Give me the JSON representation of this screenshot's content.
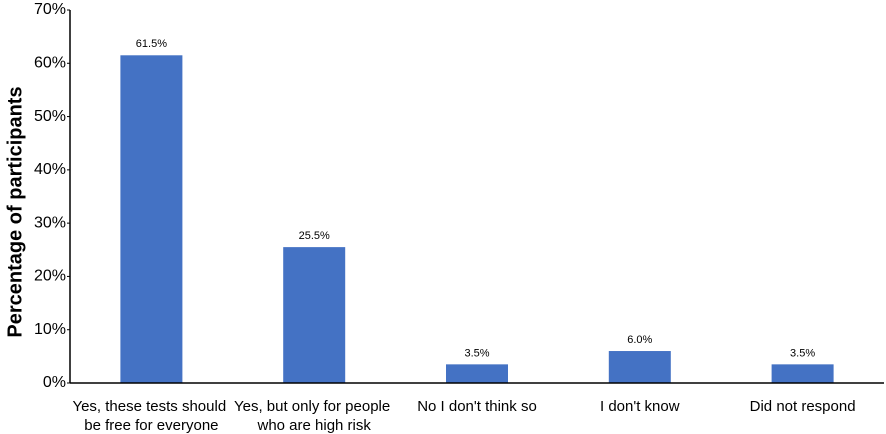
{
  "chart_data": {
    "type": "bar",
    "y_label": "Percentage of participants",
    "categories": [
      "Yes, these tests should be free for everyone",
      "Yes, but only for people who are high risk",
      "No I don't think so",
      "I don't know",
      "Did not respond"
    ],
    "values": [
      61.5,
      25.5,
      3.5,
      6.0,
      3.5
    ],
    "value_labels": [
      "61.5%",
      "25.5%",
      "3.5%",
      "6.0%",
      "3.5%"
    ],
    "color": "#4472c4",
    "ylim": [
      0,
      70
    ],
    "yticks": [
      {
        "value": 0,
        "label": "0%"
      },
      {
        "value": 10,
        "label": "10%"
      },
      {
        "value": 20,
        "label": "20%"
      },
      {
        "value": 30,
        "label": "30%"
      },
      {
        "value": 40,
        "label": "40%"
      },
      {
        "value": 50,
        "label": "50%"
      },
      {
        "value": 60,
        "label": "60%"
      },
      {
        "value": 70,
        "label": "70%"
      }
    ],
    "grid": false
  }
}
